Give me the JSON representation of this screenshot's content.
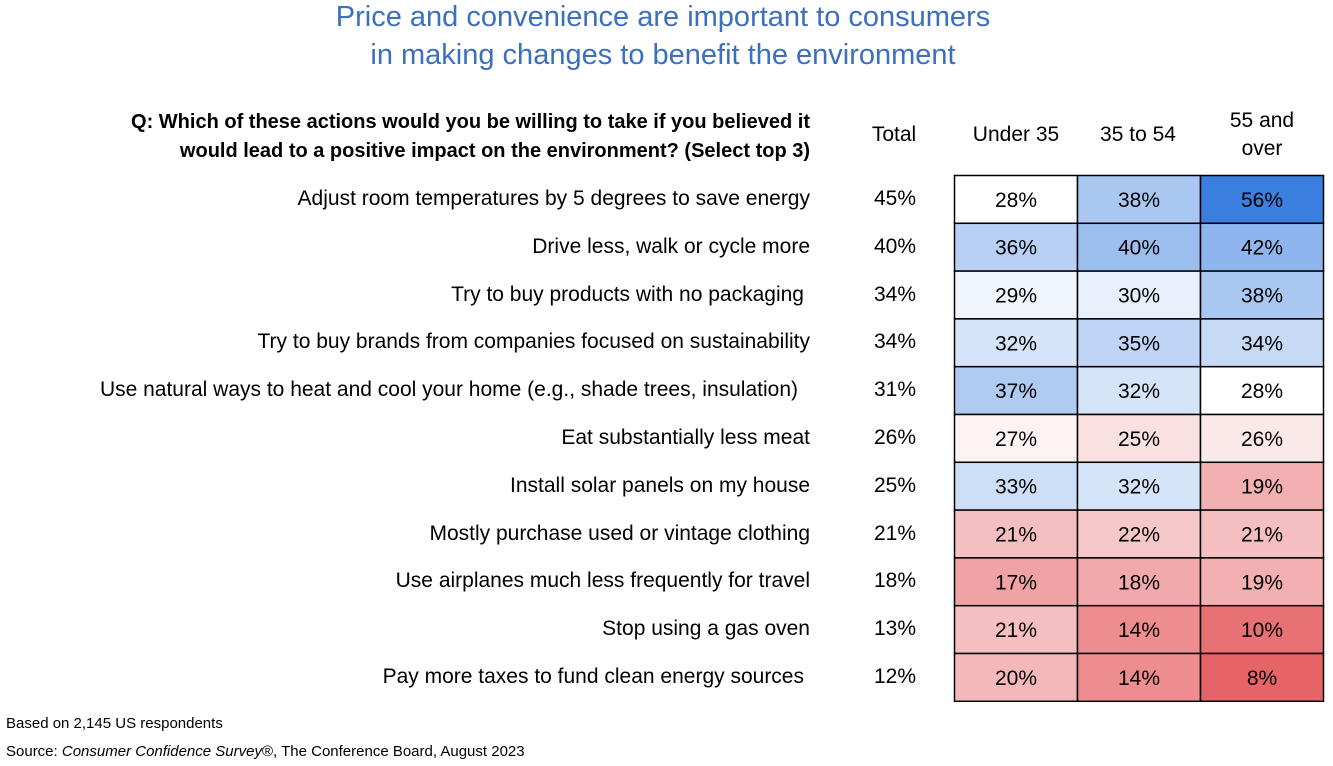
{
  "title_line1": "Price and convenience are important to consumers",
  "title_line2": "in making changes to benefit the environment",
  "question_line1": "Q: Which of these actions would you be willing to take if you believed it",
  "question_line2": "would lead to a positive impact on the environment? (Select top 3)",
  "footnote": "Based on 2,145 US respondents",
  "source_prefix": "Source: ",
  "source_italic": "Consumer Confidence Survey",
  "source_suffix": "®, The Conference Board, August 2023",
  "colors": {
    "title": "#3b6fbf",
    "high": "#3a7fe0",
    "neutral": "#ffffff",
    "low": "#e66468"
  },
  "chart_data": {
    "type": "heatmap",
    "columns": [
      "Total",
      "Under 35",
      "35 to 54",
      "55 and over"
    ],
    "column_labels": {
      "total": "Total",
      "under35": "Under 35",
      "c35to54": "35 to 54",
      "c55_line1": "55 and",
      "c55_line2": "over"
    },
    "rows": [
      {
        "label": "Adjust room temperatures by 5 degrees to save energy",
        "total": "45%",
        "values": [
          28,
          38,
          56
        ]
      },
      {
        "label": "Drive less, walk or cycle more",
        "total": "40%",
        "values": [
          36,
          40,
          42
        ]
      },
      {
        "label": "Try to buy products with no packaging",
        "total": "34%",
        "values": [
          29,
          30,
          38
        ]
      },
      {
        "label": "Try to buy brands from companies focused on sustainability",
        "total": "34%",
        "values": [
          32,
          35,
          34
        ]
      },
      {
        "label": "Use natural ways to heat and cool your home (e.g., shade trees, insulation)",
        "total": "31%",
        "values": [
          37,
          32,
          28
        ]
      },
      {
        "label": "Eat substantially less meat",
        "total": "26%",
        "values": [
          27,
          25,
          26
        ]
      },
      {
        "label": "Install solar panels on my house",
        "total": "25%",
        "values": [
          33,
          32,
          19
        ]
      },
      {
        "label": "Mostly purchase used or vintage clothing",
        "total": "21%",
        "values": [
          21,
          22,
          21
        ]
      },
      {
        "label": "Use airplanes much less frequently for travel",
        "total": "18%",
        "values": [
          17,
          18,
          19
        ]
      },
      {
        "label": "Stop using a gas oven",
        "total": "13%",
        "values": [
          21,
          14,
          10
        ]
      },
      {
        "label": "Pay more taxes to fund clean energy sources",
        "total": "12%",
        "values": [
          20,
          14,
          8
        ]
      }
    ],
    "value_suffix": "%"
  }
}
